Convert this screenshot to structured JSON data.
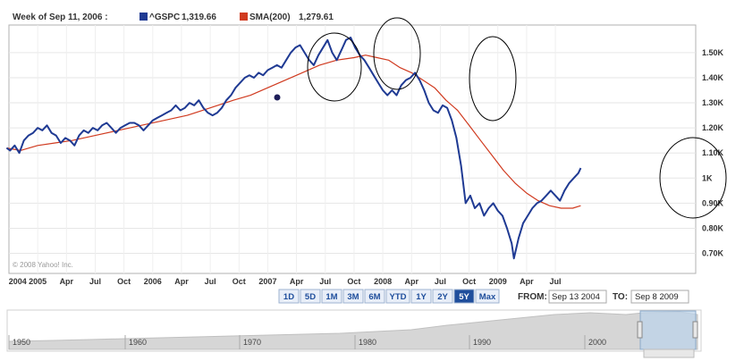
{
  "chart_data": {
    "type": "line",
    "legend": {
      "week": "Week of Sep 11, 2006 :",
      "series1_name": "^GSPC",
      "series1_value": "1,319.66",
      "series2_name": "SMA(200)",
      "series2_value": "1,279.61"
    },
    "x_range": [
      2003.75,
      2009.72
    ],
    "ylim": [
      0.62,
      1.61
    ],
    "grid": true,
    "y_ticks": [
      {
        "value": 0.7,
        "label": "0.70K"
      },
      {
        "value": 0.8,
        "label": "0.80K"
      },
      {
        "value": 0.9,
        "label": "0.90K"
      },
      {
        "value": 1.0,
        "label": "1K"
      },
      {
        "value": 1.1,
        "label": "1.10K"
      },
      {
        "value": 1.2,
        "label": "1.20K"
      },
      {
        "value": 1.3,
        "label": "1.30K"
      },
      {
        "value": 1.4,
        "label": "1.40K"
      },
      {
        "value": 1.5,
        "label": "1.50K"
      }
    ],
    "x_ticks": [
      {
        "t": 2003.74,
        "label": "2004"
      },
      {
        "t": 2004.0,
        "label": "2005"
      },
      {
        "t": 2004.25,
        "label": "Apr"
      },
      {
        "t": 2004.5,
        "label": "Jul"
      },
      {
        "t": 2004.75,
        "label": "Oct"
      },
      {
        "t": 2005.0,
        "label": "2006"
      },
      {
        "t": 2005.25,
        "label": "Apr"
      },
      {
        "t": 2005.5,
        "label": "Jul"
      },
      {
        "t": 2005.75,
        "label": "Oct"
      },
      {
        "t": 2006.0,
        "label": "2007"
      },
      {
        "t": 2006.25,
        "label": "Apr"
      },
      {
        "t": 2006.5,
        "label": "Jul"
      },
      {
        "t": 2006.75,
        "label": "Oct"
      },
      {
        "t": 2007.0,
        "label": "2008"
      },
      {
        "t": 2007.25,
        "label": "Apr"
      },
      {
        "t": 2007.5,
        "label": "Jul"
      },
      {
        "t": 2007.75,
        "label": "Oct"
      },
      {
        "t": 2008.0,
        "label": "2009"
      },
      {
        "t": 2008.25,
        "label": "Apr"
      },
      {
        "t": 2008.5,
        "label": "Jul"
      }
    ],
    "series": [
      {
        "name": "^GSPC",
        "color": "#1f3a93",
        "points": [
          [
            2003.73,
            1.12
          ],
          [
            2003.76,
            1.11
          ],
          [
            2003.8,
            1.13
          ],
          [
            2003.84,
            1.1
          ],
          [
            2003.88,
            1.15
          ],
          [
            2003.92,
            1.17
          ],
          [
            2003.96,
            1.18
          ],
          [
            2004.0,
            1.2
          ],
          [
            2004.04,
            1.19
          ],
          [
            2004.08,
            1.21
          ],
          [
            2004.12,
            1.18
          ],
          [
            2004.16,
            1.17
          ],
          [
            2004.2,
            1.14
          ],
          [
            2004.24,
            1.16
          ],
          [
            2004.28,
            1.15
          ],
          [
            2004.32,
            1.13
          ],
          [
            2004.36,
            1.17
          ],
          [
            2004.4,
            1.19
          ],
          [
            2004.44,
            1.18
          ],
          [
            2004.48,
            1.2
          ],
          [
            2004.52,
            1.19
          ],
          [
            2004.56,
            1.21
          ],
          [
            2004.6,
            1.22
          ],
          [
            2004.64,
            1.2
          ],
          [
            2004.68,
            1.18
          ],
          [
            2004.72,
            1.2
          ],
          [
            2004.76,
            1.21
          ],
          [
            2004.8,
            1.22
          ],
          [
            2004.84,
            1.22
          ],
          [
            2004.88,
            1.21
          ],
          [
            2004.92,
            1.19
          ],
          [
            2004.96,
            1.21
          ],
          [
            2005.0,
            1.23
          ],
          [
            2005.04,
            1.24
          ],
          [
            2005.08,
            1.25
          ],
          [
            2005.12,
            1.26
          ],
          [
            2005.16,
            1.27
          ],
          [
            2005.2,
            1.29
          ],
          [
            2005.24,
            1.27
          ],
          [
            2005.28,
            1.28
          ],
          [
            2005.32,
            1.3
          ],
          [
            2005.36,
            1.29
          ],
          [
            2005.4,
            1.31
          ],
          [
            2005.44,
            1.28
          ],
          [
            2005.48,
            1.26
          ],
          [
            2005.52,
            1.25
          ],
          [
            2005.56,
            1.26
          ],
          [
            2005.6,
            1.28
          ],
          [
            2005.64,
            1.31
          ],
          [
            2005.68,
            1.33
          ],
          [
            2005.72,
            1.36
          ],
          [
            2005.76,
            1.38
          ],
          [
            2005.8,
            1.4
          ],
          [
            2005.84,
            1.41
          ],
          [
            2005.88,
            1.4
          ],
          [
            2005.92,
            1.42
          ],
          [
            2005.96,
            1.41
          ],
          [
            2006.0,
            1.43
          ],
          [
            2006.04,
            1.44
          ],
          [
            2006.08,
            1.45
          ],
          [
            2006.12,
            1.44
          ],
          [
            2006.16,
            1.47
          ],
          [
            2006.2,
            1.5
          ],
          [
            2006.24,
            1.52
          ],
          [
            2006.28,
            1.53
          ],
          [
            2006.32,
            1.5
          ],
          [
            2006.36,
            1.47
          ],
          [
            2006.4,
            1.45
          ],
          [
            2006.44,
            1.49
          ],
          [
            2006.48,
            1.52
          ],
          [
            2006.52,
            1.55
          ],
          [
            2006.56,
            1.5
          ],
          [
            2006.6,
            1.47
          ],
          [
            2006.64,
            1.51
          ],
          [
            2006.68,
            1.55
          ],
          [
            2006.72,
            1.56
          ],
          [
            2006.76,
            1.52
          ],
          [
            2006.8,
            1.49
          ],
          [
            2006.84,
            1.47
          ],
          [
            2006.88,
            1.44
          ],
          [
            2006.92,
            1.41
          ],
          [
            2006.96,
            1.38
          ],
          [
            2007.0,
            1.35
          ],
          [
            2007.04,
            1.33
          ],
          [
            2007.08,
            1.35
          ],
          [
            2007.12,
            1.33
          ],
          [
            2007.16,
            1.37
          ],
          [
            2007.2,
            1.39
          ],
          [
            2007.24,
            1.4
          ],
          [
            2007.28,
            1.42
          ],
          [
            2007.32,
            1.39
          ],
          [
            2007.36,
            1.35
          ],
          [
            2007.4,
            1.3
          ],
          [
            2007.44,
            1.27
          ],
          [
            2007.48,
            1.26
          ],
          [
            2007.52,
            1.29
          ],
          [
            2007.56,
            1.28
          ],
          [
            2007.6,
            1.23
          ],
          [
            2007.64,
            1.16
          ],
          [
            2007.68,
            1.05
          ],
          [
            2007.72,
            0.9
          ],
          [
            2007.76,
            0.93
          ],
          [
            2007.8,
            0.88
          ],
          [
            2007.84,
            0.9
          ],
          [
            2007.88,
            0.85
          ],
          [
            2007.92,
            0.88
          ],
          [
            2007.96,
            0.9
          ],
          [
            2008.0,
            0.87
          ],
          [
            2008.04,
            0.85
          ],
          [
            2008.08,
            0.8
          ],
          [
            2008.12,
            0.74
          ],
          [
            2008.14,
            0.68
          ],
          [
            2008.18,
            0.76
          ],
          [
            2008.22,
            0.82
          ],
          [
            2008.26,
            0.85
          ],
          [
            2008.3,
            0.88
          ],
          [
            2008.34,
            0.9
          ],
          [
            2008.38,
            0.91
          ],
          [
            2008.42,
            0.93
          ],
          [
            2008.46,
            0.95
          ],
          [
            2008.5,
            0.93
          ],
          [
            2008.54,
            0.91
          ],
          [
            2008.58,
            0.95
          ],
          [
            2008.62,
            0.98
          ],
          [
            2008.66,
            1.0
          ],
          [
            2008.7,
            1.02
          ],
          [
            2008.72,
            1.04
          ]
        ]
      },
      {
        "name": "SMA(200)",
        "color": "#d03a1f",
        "points": [
          [
            2003.73,
            1.12
          ],
          [
            2003.85,
            1.11
          ],
          [
            2004.0,
            1.13
          ],
          [
            2004.15,
            1.14
          ],
          [
            2004.3,
            1.15
          ],
          [
            2004.5,
            1.17
          ],
          [
            2004.7,
            1.19
          ],
          [
            2004.9,
            1.21
          ],
          [
            2005.1,
            1.23
          ],
          [
            2005.3,
            1.25
          ],
          [
            2005.5,
            1.28
          ],
          [
            2005.7,
            1.31
          ],
          [
            2005.85,
            1.33
          ],
          [
            2006.0,
            1.36
          ],
          [
            2006.15,
            1.39
          ],
          [
            2006.3,
            1.42
          ],
          [
            2006.45,
            1.45
          ],
          [
            2006.6,
            1.47
          ],
          [
            2006.75,
            1.48
          ],
          [
            2006.85,
            1.49
          ],
          [
            2006.95,
            1.48
          ],
          [
            2007.05,
            1.47
          ],
          [
            2007.15,
            1.44
          ],
          [
            2007.25,
            1.42
          ],
          [
            2007.35,
            1.39
          ],
          [
            2007.45,
            1.36
          ],
          [
            2007.55,
            1.31
          ],
          [
            2007.65,
            1.27
          ],
          [
            2007.75,
            1.21
          ],
          [
            2007.85,
            1.15
          ],
          [
            2007.95,
            1.09
          ],
          [
            2008.05,
            1.03
          ],
          [
            2008.15,
            0.98
          ],
          [
            2008.25,
            0.94
          ],
          [
            2008.35,
            0.91
          ],
          [
            2008.45,
            0.89
          ],
          [
            2008.55,
            0.88
          ],
          [
            2008.65,
            0.88
          ],
          [
            2008.72,
            0.89
          ]
        ]
      }
    ]
  },
  "copyright": "© 2008 Yahoo! Inc.",
  "range_buttons": [
    "1D",
    "5D",
    "1M",
    "3M",
    "6M",
    "YTD",
    "1Y",
    "2Y",
    "5Y",
    "Max"
  ],
  "active_range": "5Y",
  "from_label": "FROM:",
  "from_value": "Sep 13 2004",
  "to_label": "TO:",
  "to_value": "Sep 8 2009",
  "navigator_ticks": [
    "1950",
    "1960",
    "1970",
    "1980",
    "1990",
    "2000"
  ]
}
